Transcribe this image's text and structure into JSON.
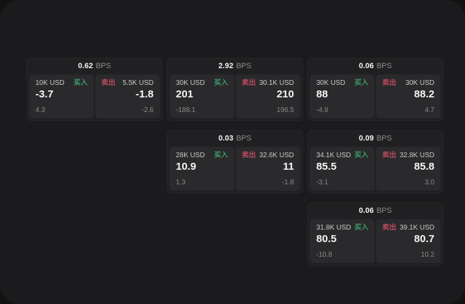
{
  "labels": {
    "buy": "买入",
    "sell": "卖出",
    "bps_unit": "BPS"
  },
  "colors": {
    "buy_green": "#3d9e68",
    "sell_red": "#bb4a5f"
  },
  "cards": [
    {
      "bps": "0.62",
      "buy": {
        "size": "10K USD",
        "price": "-3.7",
        "sub": "4.3"
      },
      "sell": {
        "size": "5.5K USD",
        "price": "-1.8",
        "sub": "-2.6"
      }
    },
    {
      "bps": "2.92",
      "buy": {
        "size": "30K USD",
        "price": "201",
        "sub": "-188.1"
      },
      "sell": {
        "size": "30.1K USD",
        "price": "210",
        "sub": "196.5"
      }
    },
    {
      "bps": "0.06",
      "buy": {
        "size": "30K USD",
        "price": "88",
        "sub": "-4.9"
      },
      "sell": {
        "size": "30K USD",
        "price": "88.2",
        "sub": "4.7"
      }
    },
    {
      "bps": "0.03",
      "buy": {
        "size": "28K USD",
        "price": "10.9",
        "sub": "1.3"
      },
      "sell": {
        "size": "32.6K USD",
        "price": "11",
        "sub": "-1.8"
      }
    },
    {
      "bps": "0.09",
      "buy": {
        "size": "34.1K USD",
        "price": "85.5",
        "sub": "-3.1"
      },
      "sell": {
        "size": "32.8K USD",
        "price": "85.8",
        "sub": "3.0"
      }
    },
    {
      "bps": "0.06",
      "buy": {
        "size": "31.8K USD",
        "price": "80.5",
        "sub": "-10.8"
      },
      "sell": {
        "size": "39.1K USD",
        "price": "80.7",
        "sub": "10.2"
      }
    }
  ]
}
